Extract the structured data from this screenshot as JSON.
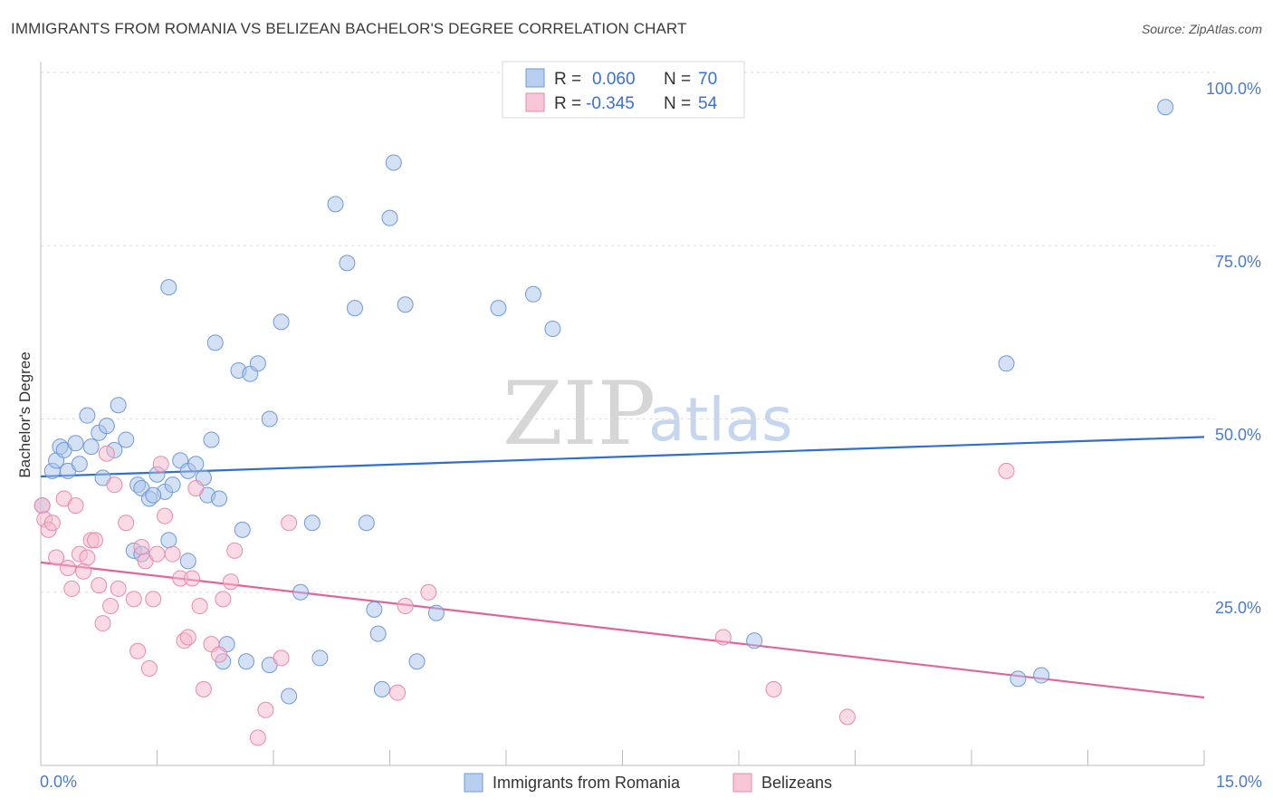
{
  "title": "IMMIGRANTS FROM ROMANIA VS BELIZEAN BACHELOR'S DEGREE CORRELATION CHART",
  "source": "Source: ZipAtlas.com",
  "watermark": {
    "zip": "ZIP",
    "atlas": "atlas"
  },
  "legend": {
    "rows": [
      {
        "r_label": "R =",
        "r_value": "0.060",
        "n_label": "N =",
        "n_value": "70"
      },
      {
        "r_label": "R =",
        "r_value": "-0.345",
        "n_label": "N =",
        "n_value": "54"
      }
    ]
  },
  "bottom_legend": [
    "Immigrants from Romania",
    "Belizeans"
  ],
  "chart_data": {
    "type": "scatter",
    "title": "IMMIGRANTS FROM ROMANIA VS BELIZEAN BACHELOR'S DEGREE CORRELATION CHART",
    "xlabel": "",
    "ylabel": "Bachelor's Degree",
    "xlim": [
      0,
      15
    ],
    "ylim": [
      0,
      100
    ],
    "x_tick_labels": [
      "0.0%",
      "15.0%"
    ],
    "y_tick_labels": [
      "25.0%",
      "50.0%",
      "75.0%",
      "100.0%"
    ],
    "y_ticks": [
      25,
      50,
      75,
      100
    ],
    "grid": true,
    "legend_placement": "top-center",
    "series": [
      {
        "name": "Immigrants from Romania",
        "color": "#a9c4ec",
        "stroke": "#6f9ad8",
        "trend": {
          "x": [
            0,
            15
          ],
          "y": [
            41.7,
            47.4
          ],
          "color": "#2f6fce"
        },
        "points": [
          [
            0.02,
            37.5
          ],
          [
            0.15,
            42.5
          ],
          [
            0.2,
            44.0
          ],
          [
            0.25,
            46.0
          ],
          [
            0.3,
            45.5
          ],
          [
            0.35,
            42.5
          ],
          [
            0.45,
            46.5
          ],
          [
            0.5,
            43.5
          ],
          [
            0.6,
            50.5
          ],
          [
            0.65,
            46.0
          ],
          [
            0.75,
            48.0
          ],
          [
            0.85,
            49.0
          ],
          [
            0.8,
            41.5
          ],
          [
            0.95,
            45.5
          ],
          [
            1.0,
            52.0
          ],
          [
            1.1,
            47.0
          ],
          [
            1.2,
            31.0
          ],
          [
            1.25,
            40.5
          ],
          [
            1.3,
            40.0
          ],
          [
            1.4,
            38.5
          ],
          [
            1.5,
            42.0
          ],
          [
            1.6,
            39.5
          ],
          [
            1.65,
            32.5
          ],
          [
            1.7,
            40.5
          ],
          [
            1.65,
            69.0
          ],
          [
            1.8,
            44.0
          ],
          [
            1.9,
            42.5
          ],
          [
            1.9,
            29.5
          ],
          [
            2.0,
            43.5
          ],
          [
            2.1,
            41.5
          ],
          [
            2.15,
            39.0
          ],
          [
            2.2,
            47.0
          ],
          [
            2.25,
            61.0
          ],
          [
            2.3,
            38.5
          ],
          [
            2.35,
            15.0
          ],
          [
            2.4,
            17.5
          ],
          [
            2.55,
            57.0
          ],
          [
            2.6,
            34.0
          ],
          [
            2.7,
            56.5
          ],
          [
            2.65,
            15.0
          ],
          [
            2.8,
            58.0
          ],
          [
            2.95,
            14.5
          ],
          [
            2.95,
            50.0
          ],
          [
            3.1,
            64.0
          ],
          [
            3.2,
            10.0
          ],
          [
            3.35,
            25.0
          ],
          [
            3.5,
            35.0
          ],
          [
            3.6,
            15.5
          ],
          [
            3.8,
            81.0
          ],
          [
            3.95,
            72.5
          ],
          [
            4.05,
            66.0
          ],
          [
            4.2,
            35.0
          ],
          [
            4.3,
            22.5
          ],
          [
            4.35,
            19.0
          ],
          [
            4.4,
            11.0
          ],
          [
            4.5,
            79.0
          ],
          [
            4.55,
            87.0
          ],
          [
            4.7,
            66.5
          ],
          [
            4.85,
            15.0
          ],
          [
            5.1,
            22.0
          ],
          [
            5.9,
            66.0
          ],
          [
            6.35,
            68.0
          ],
          [
            6.6,
            63.0
          ],
          [
            9.2,
            18.0
          ],
          [
            12.45,
            58.0
          ],
          [
            12.6,
            12.5
          ],
          [
            12.9,
            13.0
          ],
          [
            14.5,
            95.0
          ],
          [
            1.3,
            30.5
          ],
          [
            1.45,
            39.0
          ]
        ]
      },
      {
        "name": "Belizeans",
        "color": "#f5b8cb",
        "stroke": "#e98aa9",
        "trend": {
          "x": [
            0,
            15
          ],
          "y": [
            29.3,
            9.8
          ],
          "color": "#e0669a"
        },
        "points": [
          [
            0.02,
            37.5
          ],
          [
            0.05,
            35.5
          ],
          [
            0.1,
            34.0
          ],
          [
            0.15,
            35.0
          ],
          [
            0.2,
            30.0
          ],
          [
            0.3,
            38.5
          ],
          [
            0.35,
            28.5
          ],
          [
            0.4,
            25.5
          ],
          [
            0.45,
            37.5
          ],
          [
            0.5,
            30.5
          ],
          [
            0.55,
            28.0
          ],
          [
            0.6,
            30.0
          ],
          [
            0.65,
            32.5
          ],
          [
            0.7,
            32.5
          ],
          [
            0.75,
            26.0
          ],
          [
            0.8,
            20.5
          ],
          [
            0.85,
            45.0
          ],
          [
            0.9,
            23.0
          ],
          [
            0.95,
            40.5
          ],
          [
            1.0,
            25.5
          ],
          [
            1.1,
            35.0
          ],
          [
            1.2,
            24.0
          ],
          [
            1.25,
            16.5
          ],
          [
            1.3,
            31.5
          ],
          [
            1.35,
            29.5
          ],
          [
            1.4,
            14.0
          ],
          [
            1.45,
            24.0
          ],
          [
            1.5,
            30.5
          ],
          [
            1.55,
            43.5
          ],
          [
            1.6,
            36.0
          ],
          [
            1.7,
            30.5
          ],
          [
            1.8,
            27.0
          ],
          [
            1.85,
            18.0
          ],
          [
            1.9,
            18.5
          ],
          [
            1.95,
            27.0
          ],
          [
            2.0,
            40.0
          ],
          [
            2.05,
            23.0
          ],
          [
            2.1,
            11.0
          ],
          [
            2.2,
            17.5
          ],
          [
            2.3,
            16.0
          ],
          [
            2.35,
            24.0
          ],
          [
            2.45,
            26.5
          ],
          [
            2.5,
            31.0
          ],
          [
            2.8,
            4.0
          ],
          [
            2.9,
            8.0
          ],
          [
            3.1,
            15.5
          ],
          [
            3.2,
            35.0
          ],
          [
            4.6,
            10.5
          ],
          [
            4.7,
            23.0
          ],
          [
            5.0,
            25.0
          ],
          [
            8.8,
            18.5
          ],
          [
            9.45,
            11.0
          ],
          [
            10.4,
            7.0
          ],
          [
            12.45,
            42.5
          ]
        ]
      }
    ]
  }
}
